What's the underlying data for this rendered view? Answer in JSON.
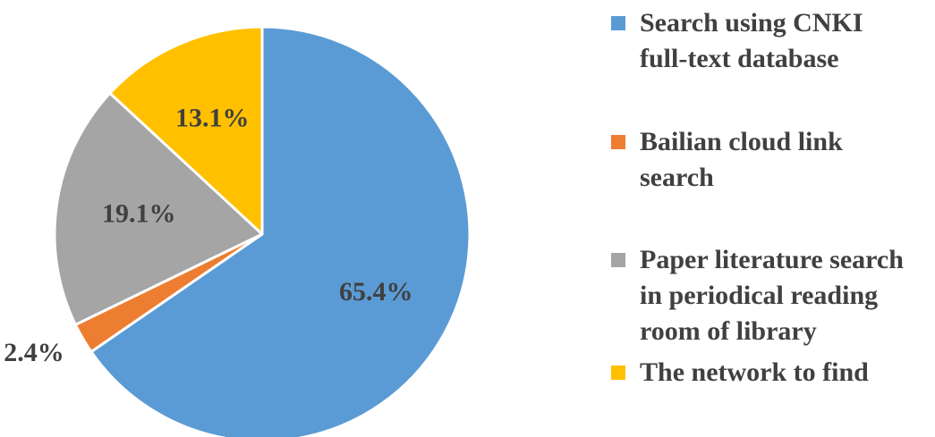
{
  "chart_data": {
    "type": "pie",
    "title": "",
    "slices": [
      {
        "label": "Search using CNKI full-text database",
        "value": 65.4,
        "display": "65.4%",
        "color": "#5B9BD5"
      },
      {
        "label": "Bailian cloud link search",
        "value": 2.4,
        "display": "2.4%",
        "color": "#ED7D31"
      },
      {
        "label": "Paper literature search in periodical reading room of library",
        "value": 19.1,
        "display": "19.1%",
        "color": "#A5A5A5"
      },
      {
        "label": "The network to find",
        "value": 13.1,
        "display": "13.1%",
        "color": "#FFC000"
      }
    ],
    "start_angle": "12 o'clock",
    "direction": "clockwise",
    "legend_position": "right"
  },
  "legend": {
    "items": [
      {
        "lines": "Search using CNKI\nfull-text database",
        "color": "#5B9BD5"
      },
      {
        "lines": "Bailian cloud link\nsearch",
        "color": "#ED7D31"
      },
      {
        "lines": "Paper literature search\nin periodical reading\nroom of library",
        "color": "#A5A5A5"
      },
      {
        "lines": "The network to find",
        "color": "#FFC000"
      }
    ]
  }
}
